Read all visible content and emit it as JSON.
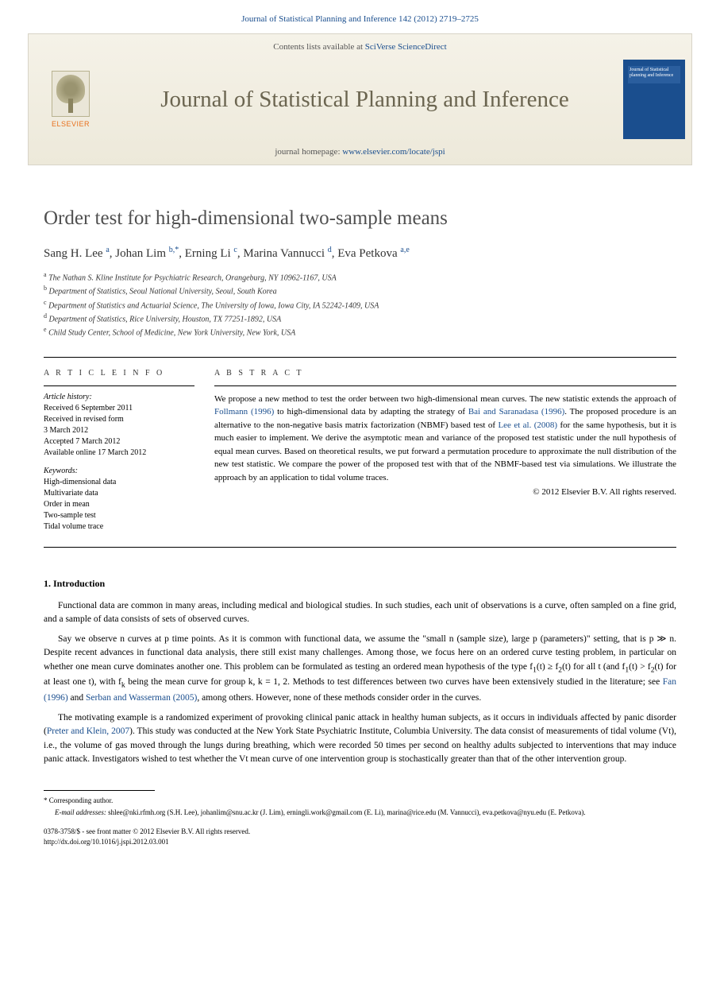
{
  "header": {
    "citation": "Journal of Statistical Planning and Inference 142 (2012) 2719–2725"
  },
  "banner": {
    "contents_line_prefix": "Contents lists available at ",
    "contents_link": "SciVerse ScienceDirect",
    "publisher": "ELSEVIER",
    "journal_name": "Journal of Statistical Planning and Inference",
    "homepage_prefix": "journal homepage: ",
    "homepage_url": "www.elsevier.com/locate/jspi",
    "cover_text": "Journal of Statistical planning and Inference",
    "colors": {
      "banner_bg_top": "#f5f2e8",
      "banner_bg_bottom": "#ede9da",
      "banner_border": "#d8d4c8",
      "logo_orange": "#e8711c",
      "cover_blue": "#1a4e8e",
      "link_blue": "#1a4e8e",
      "title_gray": "#6b6550"
    }
  },
  "article": {
    "title": "Order test for high-dimensional two-sample means",
    "authors_html": "Sang H. Lee <sup>a</sup>, Johan Lim <sup>b,*</sup>, Erning Li <sup>c</sup>, Marina Vannucci <sup>d</sup>, Eva Petkova <sup>a,e</sup>",
    "affiliations": [
      {
        "sup": "a",
        "text": "The Nathan S. Kline Institute for Psychiatric Research, Orangeburg, NY 10962-1167, USA"
      },
      {
        "sup": "b",
        "text": "Department of Statistics, Seoul National University, Seoul, South Korea"
      },
      {
        "sup": "c",
        "text": "Department of Statistics and Actuarial Science, The University of Iowa, Iowa City, IA 52242-1409, USA"
      },
      {
        "sup": "d",
        "text": "Department of Statistics, Rice University, Houston, TX 77251-1892, USA"
      },
      {
        "sup": "e",
        "text": "Child Study Center, School of Medicine, New York University, New York, USA"
      }
    ]
  },
  "info": {
    "heading": "A R T I C L E   I N F O",
    "history_label": "Article history:",
    "history": "Received 6 September 2011\nReceived in revised form\n3 March 2012\nAccepted 7 March 2012\nAvailable online 17 March 2012",
    "keywords_label": "Keywords:",
    "keywords": "High-dimensional data\nMultivariate data\nOrder in mean\nTwo-sample test\nTidal volume trace"
  },
  "abstract": {
    "heading": "A B S T R A C T",
    "text_parts": {
      "p1": "We propose a new method to test the order between two high-dimensional mean curves. The new statistic extends the approach of ",
      "link1": "Follmann (1996)",
      "p2": " to high-dimensional data by adapting the strategy of ",
      "link2": "Bai and Saranadasa (1996)",
      "p3": ". The proposed procedure is an alternative to the non-negative basis matrix factorization (NBMF) based test of ",
      "link3": "Lee et al. (2008)",
      "p4": " for the same hypothesis, but it is much easier to implement. We derive the asymptotic mean and variance of the proposed test statistic under the null hypothesis of equal mean curves. Based on theoretical results, we put forward a permutation procedure to approximate the null distribution of the new test statistic. We compare the power of the proposed test with that of the NBMF-based test via simulations. We illustrate the approach by an application to tidal volume traces."
    },
    "copyright": "© 2012 Elsevier B.V. All rights reserved."
  },
  "sections": {
    "intro_heading": "1.  Introduction",
    "para1": "Functional data are common in many areas, including medical and biological studies. In such studies, each unit of observations is a curve, often sampled on a fine grid, and a sample of data consists of sets of observed curves.",
    "para2_parts": {
      "p1": "Say we observe n curves at p time points. As it is common with functional data, we assume the \"small n (sample size), large p (parameters)\" setting, that is p ≫ n. Despite recent advances in functional data analysis, there still exist many challenges. Among those, we focus here on an ordered curve testing problem, in particular on whether one mean curve dominates another one. This problem can be formulated as testing an ordered mean hypothesis of the type f",
      "sub1": "1",
      "p2": "(t) ≥ f",
      "sub2": "2",
      "p3": "(t) for all t (and f",
      "sub3": "1",
      "p4": "(t) > f",
      "sub4": "2",
      "p5": "(t) for at least one t), with f",
      "sub5": "k",
      "p6": " being the mean curve for group k, k = 1, 2. Methods to test differences between two curves have been extensively studied in the literature; see ",
      "link1": "Fan (1996)",
      "p7": " and ",
      "link2": "Serban and Wasserman (2005)",
      "p8": ", among others. However, none of these methods consider order in the curves."
    },
    "para3_parts": {
      "p1": "The motivating example is a randomized experiment of provoking clinical panic attack in healthy human subjects, as it occurs in individuals affected by panic disorder (",
      "link1": "Preter and Klein, 2007",
      "p2": "). This study was conducted at the New York State Psychiatric Institute, Columbia University. The data consist of measurements of tidal volume (Vt), i.e., the volume of gas moved through the lungs during breathing, which were recorded 50 times per second on healthy adults subjected to interventions that may induce panic attack. Investigators wished to test whether the Vt mean curve of one intervention group is stochastically greater than that of the other intervention group."
    }
  },
  "footer": {
    "corresponding": "* Corresponding author.",
    "emails_label": "E-mail addresses:",
    "emails": " shlee@nki.rfmh.org (S.H. Lee), johanlim@snu.ac.kr (J. Lim), erningli.work@gmail.com (E. Li), marina@rice.edu (M. Vannucci), eva.petkova@nyu.edu (E. Petkova).",
    "issn_line": "0378-3758/$ - see front matter © 2012 Elsevier B.V. All rights reserved.",
    "doi_line": "http://dx.doi.org/10.1016/j.jspi.2012.03.001"
  }
}
